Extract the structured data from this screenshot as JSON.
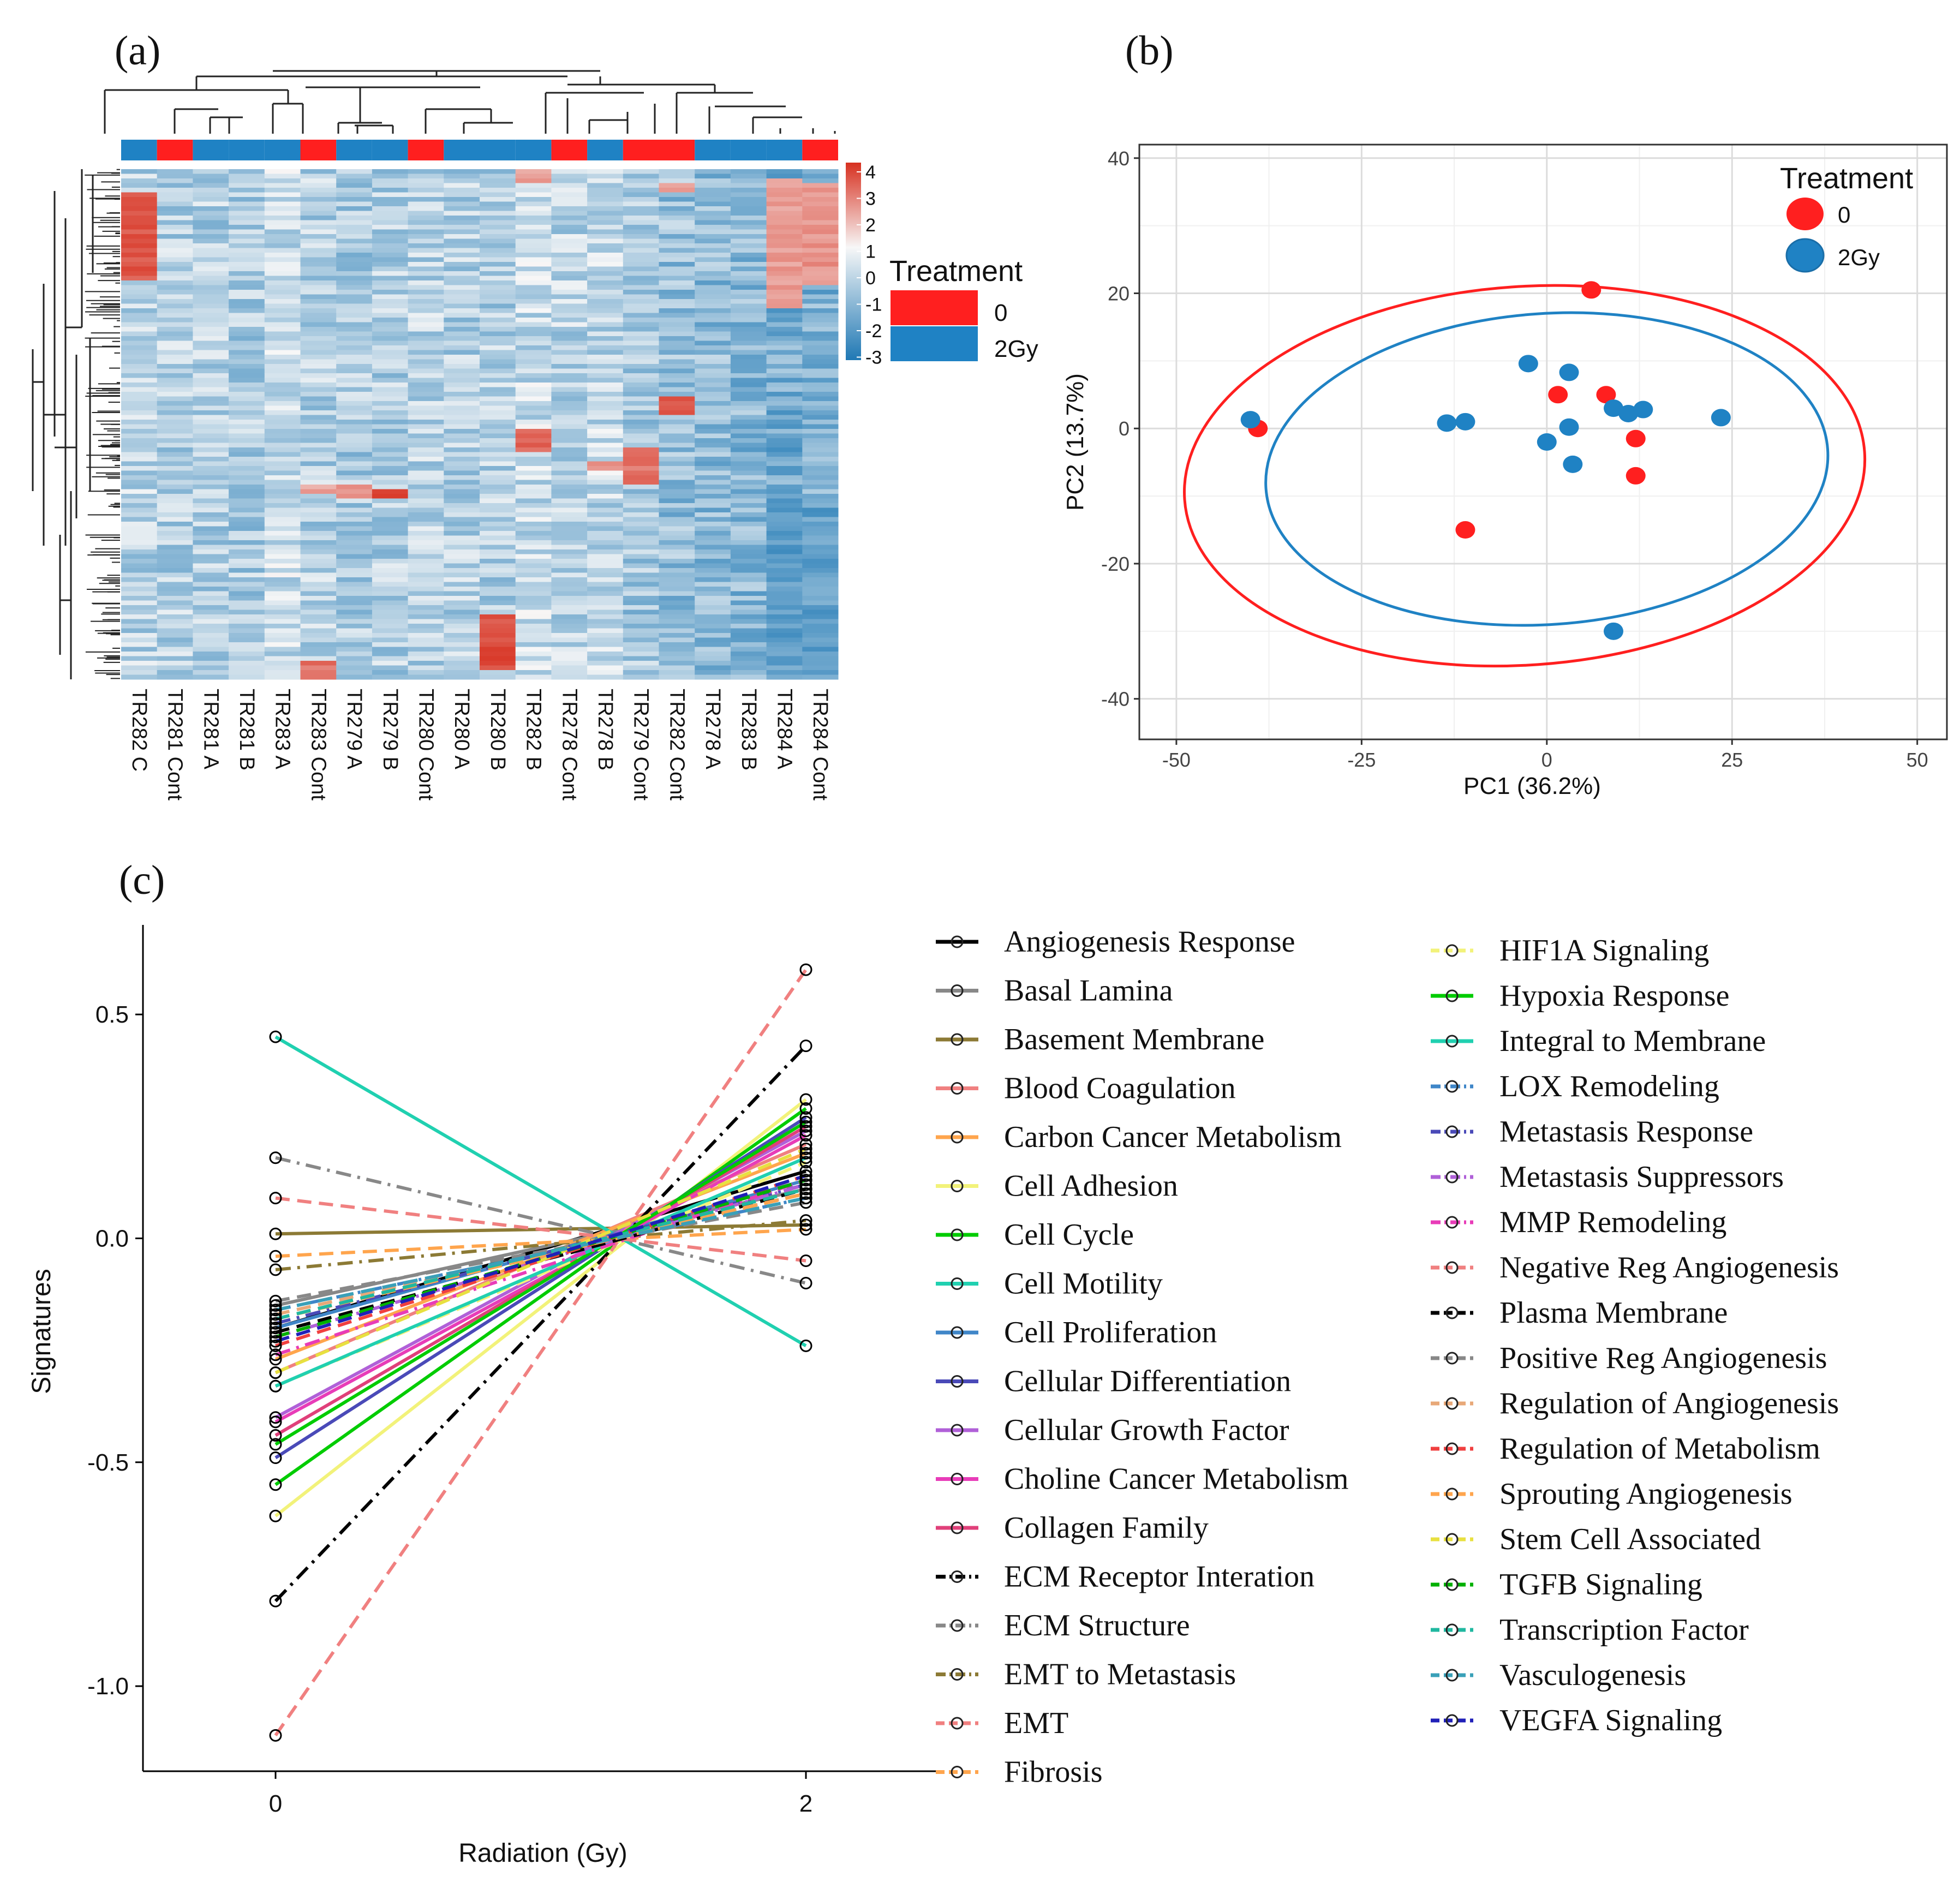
{
  "panels": {
    "a": "(a)",
    "b": "(b)",
    "c": "(c)"
  },
  "colors": {
    "red": "#ff1f1f",
    "blue": "#1f82c4",
    "heat_low": "#2a7fb8",
    "heat_mid": "#f7f7f7",
    "heat_high": "#d7301f"
  },
  "chart_data": [
    {
      "type": "heatmap",
      "panel": "(a)",
      "columns": [
        "TR282 C",
        "TR281 Cont",
        "TR281 A",
        "TR281 B",
        "TR283 A",
        "TR283 Cont",
        "TR279 A",
        "TR279 B",
        "TR280 Cont",
        "TR280 A",
        "TR280 B",
        "TR282 B",
        "TR278 Cont",
        "TR278 B",
        "TR279 Cont",
        "TR282 Cont",
        "TR278 A",
        "TR283 B",
        "TR284 A",
        "TR284 Cont"
      ],
      "column_treatment": [
        "2Gy",
        "0",
        "2Gy",
        "2Gy",
        "2Gy",
        "0",
        "2Gy",
        "2Gy",
        "0",
        "2Gy",
        "2Gy",
        "2Gy",
        "0",
        "2Gy",
        "0",
        "0",
        "2Gy",
        "2Gy",
        "2Gy",
        "0"
      ],
      "color_scale": {
        "ticks": [
          "4",
          "3",
          "2",
          "1",
          "0",
          "-1",
          "-2",
          "-3"
        ],
        "range": [
          -3,
          4
        ]
      },
      "legend": {
        "title": "Treatment",
        "entries": [
          "0",
          "2Gy"
        ]
      }
    },
    {
      "type": "scatter",
      "panel": "(b)",
      "xlabel": "PC1 (36.2%)",
      "ylabel": "PC2 (13.7%)",
      "xlim": [
        -55,
        54
      ],
      "ylim": [
        -46,
        42
      ],
      "xticks": [
        "-50",
        "-25",
        "0",
        "25",
        "50"
      ],
      "yticks": [
        "40",
        "20",
        "0",
        "-20",
        "-40"
      ],
      "grid": true,
      "legend": {
        "title": "Treatment",
        "entries": [
          "0",
          "2Gy"
        ],
        "position": "top-right"
      },
      "series": [
        {
          "name": "0",
          "points": [
            [
              6,
              20.5
            ],
            [
              -39,
              0
            ],
            [
              1.5,
              5
            ],
            [
              8,
              5
            ],
            [
              12,
              -1.5
            ],
            [
              12,
              -7
            ],
            [
              -11,
              -15
            ]
          ]
        },
        {
          "name": "2Gy",
          "points": [
            [
              -40,
              1.3
            ],
            [
              -2.5,
              9.6
            ],
            [
              3,
              8.3
            ],
            [
              -13.5,
              0.8
            ],
            [
              -11,
              1
            ],
            [
              0,
              -2
            ],
            [
              3,
              0.2
            ],
            [
              3.5,
              -5.3
            ],
            [
              9,
              3
            ],
            [
              11,
              2.2
            ],
            [
              13,
              2.8
            ],
            [
              23.5,
              1.6
            ],
            [
              9,
              -30
            ]
          ]
        }
      ],
      "ellipses": [
        {
          "name": "0",
          "center": [
            -3,
            -7
          ],
          "radii": [
            46,
            28
          ]
        },
        {
          "name": "2Gy",
          "center": [
            0,
            -6
          ],
          "radii": [
            38,
            23
          ]
        }
      ]
    },
    {
      "type": "line",
      "panel": "(c)",
      "xlabel": "Radiation (Gy)",
      "ylabel": "Signatures",
      "x": [
        0,
        2
      ],
      "xticks": [
        "0",
        "2"
      ],
      "xlim": [
        -0.5,
        2.5
      ],
      "ylim": [
        -1.19,
        0.7
      ],
      "yticks": [
        "0.5",
        "0.0",
        "-0.5",
        "-1.0"
      ],
      "series": [
        {
          "name": "Angiogenesis Response",
          "values": [
            -0.2,
            0.15
          ],
          "color": "#000000",
          "dash": "solid"
        },
        {
          "name": "Basal Lamina",
          "values": [
            -0.15,
            0.11
          ],
          "color": "#888888",
          "dash": "solid"
        },
        {
          "name": "Basement Membrane",
          "values": [
            0.01,
            0.03
          ],
          "color": "#8c7a35",
          "dash": "solid"
        },
        {
          "name": "Blood Coagulation",
          "values": [
            -0.3,
            0.21
          ],
          "color": "#f08080",
          "dash": "solid"
        },
        {
          "name": "Carbon Cancer Metabolism",
          "values": [
            -0.27,
            0.19
          ],
          "color": "#ffa54d",
          "dash": "solid"
        },
        {
          "name": "Cell Adhesion",
          "values": [
            -0.62,
            0.31
          ],
          "color": "#f2f27a",
          "dash": "solid"
        },
        {
          "name": "Cell Cycle",
          "values": [
            -0.55,
            0.29
          ],
          "color": "#00cc00",
          "dash": "solid"
        },
        {
          "name": "Cell Motility",
          "values": [
            0.45,
            -0.24
          ],
          "color": "#20d0b0",
          "dash": "solid"
        },
        {
          "name": "Cell Proliferation",
          "values": [
            -0.2,
            0.13
          ],
          "color": "#3f86c8",
          "dash": "solid"
        },
        {
          "name": "Cellular Differentiation",
          "values": [
            -0.49,
            0.27
          ],
          "color": "#4a4ab8",
          "dash": "solid"
        },
        {
          "name": "Cellular Growth Factor",
          "values": [
            -0.4,
            0.24
          ],
          "color": "#b060d8",
          "dash": "solid"
        },
        {
          "name": "Choline Cancer Metabolism",
          "values": [
            -0.41,
            0.23
          ],
          "color": "#e83cb8",
          "dash": "solid"
        },
        {
          "name": "Collagen Family",
          "values": [
            -0.44,
            0.25
          ],
          "color": "#e0407a",
          "dash": "solid"
        },
        {
          "name": "ECM Receptor Interation",
          "values": [
            -0.81,
            0.43
          ],
          "color": "#000000",
          "dash": "dashdot"
        },
        {
          "name": "ECM Structure",
          "values": [
            0.18,
            -0.1
          ],
          "color": "#888888",
          "dash": "dashdot"
        },
        {
          "name": "EMT to Metastasis",
          "values": [
            -0.07,
            0.04
          ],
          "color": "#8c7a35",
          "dash": "dashdot"
        },
        {
          "name": "EMT",
          "values": [
            -1.11,
            0.6
          ],
          "color": "#f08080",
          "dash": "dashed"
        },
        {
          "name": "Fibrosis",
          "values": [
            -0.04,
            0.02
          ],
          "color": "#ffa54d",
          "dash": "dashed"
        },
        {
          "name": "HIF1A Signaling",
          "values": [
            -0.33,
            0.17
          ],
          "color": "#f2f27a",
          "dash": "dashed"
        },
        {
          "name": "Hypoxia Response",
          "values": [
            -0.46,
            0.26
          ],
          "color": "#00cc00",
          "dash": "solid"
        },
        {
          "name": "Integral to Membrane",
          "values": [
            -0.33,
            0.18
          ],
          "color": "#20d0b0",
          "dash": "solid"
        },
        {
          "name": "LOX Remodeling",
          "values": [
            -0.16,
            0.09
          ],
          "color": "#3f86c8",
          "dash": "dashdot"
        },
        {
          "name": "Metastasis Response",
          "values": [
            -0.19,
            0.12
          ],
          "color": "#4a4ab8",
          "dash": "dashdot"
        },
        {
          "name": "Metastasis Suppressors",
          "values": [
            -0.22,
            0.12
          ],
          "color": "#b060d8",
          "dash": "dashdot"
        },
        {
          "name": "MMP Remodeling",
          "values": [
            -0.26,
            0.13
          ],
          "color": "#e83cb8",
          "dash": "dashdot"
        },
        {
          "name": "Negative Reg Angiogenesis",
          "values": [
            0.09,
            -0.05
          ],
          "color": "#f08080",
          "dash": "dashed"
        },
        {
          "name": "Plasma Membrane",
          "values": [
            -0.21,
            0.11
          ],
          "color": "#000000",
          "dash": "dashed"
        },
        {
          "name": "Positive Reg Angiogenesis",
          "values": [
            -0.14,
            0.08
          ],
          "color": "#888888",
          "dash": "dashed"
        },
        {
          "name": "Regulation of Angiogenesis",
          "values": [
            -0.17,
            0.1
          ],
          "color": "#e8a878",
          "dash": "dashed"
        },
        {
          "name": "Regulation of Metabolism",
          "values": [
            -0.24,
            0.14
          ],
          "color": "#f04040",
          "dash": "dashed"
        },
        {
          "name": "Sprouting Angiogenesis",
          "values": [
            -0.18,
            0.1
          ],
          "color": "#ffa54d",
          "dash": "dashed"
        },
        {
          "name": "Stem Cell Associated",
          "values": [
            -0.3,
            0.2
          ],
          "color": "#e8e040",
          "dash": "dashed"
        },
        {
          "name": "TGFB Signaling",
          "values": [
            -0.22,
            0.13
          ],
          "color": "#00b000",
          "dash": "dashed"
        },
        {
          "name": "Transcription Factor",
          "values": [
            -0.18,
            0.11
          ],
          "color": "#20b8a0",
          "dash": "dashed"
        },
        {
          "name": "Vasculogenesis",
          "values": [
            -0.16,
            0.09
          ],
          "color": "#3aa0b8",
          "dash": "dashed"
        },
        {
          "name": "VEGFA Signaling",
          "values": [
            -0.23,
            0.14
          ],
          "color": "#2020b8",
          "dash": "dashed"
        }
      ]
    }
  ]
}
